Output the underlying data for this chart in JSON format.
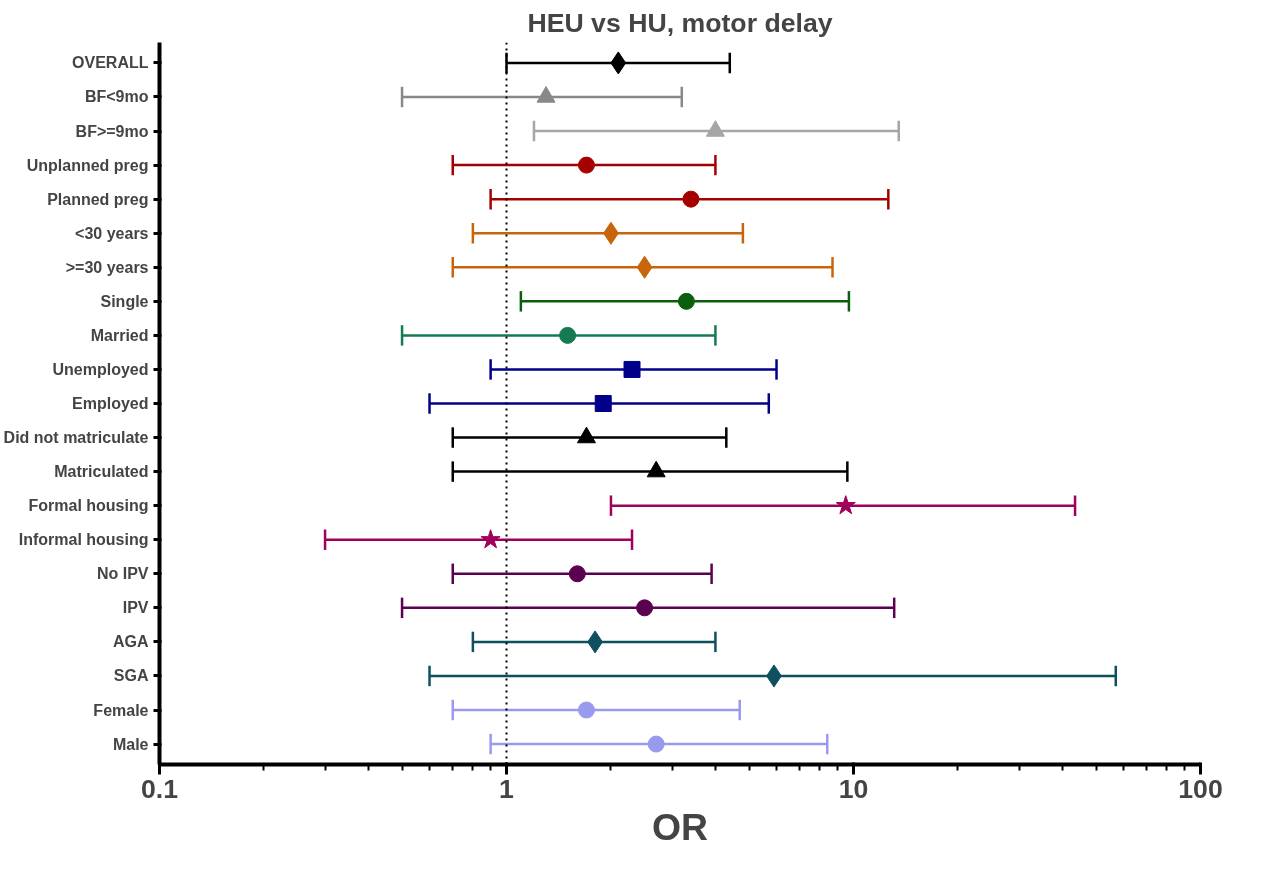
{
  "chart_data": {
    "type": "scatter",
    "orientation": "horizontal",
    "title": "HEU vs HU, motor delay",
    "xlabel": "OR",
    "log": "x",
    "grid": false,
    "categories": [
      "OVERALL",
      "BF<9mo",
      "BF>=9mo",
      "Unplanned preg",
      "Planned preg",
      "<30 years",
      ">=30 years",
      "Single",
      "Married",
      "Unemployed",
      "Employed",
      "Did not matriculate",
      "Matriculated",
      "Formal housing",
      "Informal housing",
      "No IPV",
      "IPV",
      "AGA",
      "SGA",
      "Female",
      "Male"
    ],
    "xlim": [
      0.1,
      100
    ],
    "xticks": [
      0.1,
      {
        "value": 0.2,
        "label": null
      },
      {
        "value": 0.3,
        "label": null
      },
      {
        "value": 0.4,
        "label": null
      },
      {
        "value": 0.5,
        "label": null
      },
      {
        "value": 0.6,
        "label": null
      },
      {
        "value": 0.7,
        "label": null
      },
      {
        "value": 0.8,
        "label": null
      },
      {
        "value": 0.9,
        "label": null
      },
      1,
      {
        "value": 2,
        "label": null
      },
      {
        "value": 3,
        "label": null
      },
      {
        "value": 4,
        "label": null
      },
      {
        "value": 5,
        "label": null
      },
      {
        "value": 6,
        "label": null
      },
      {
        "value": 7,
        "label": null
      },
      {
        "value": 8,
        "label": null
      },
      {
        "value": 9,
        "label": null
      },
      10,
      {
        "value": 20,
        "label": null
      },
      {
        "value": 30,
        "label": null
      },
      {
        "value": 40,
        "label": null
      },
      {
        "value": 50,
        "label": null
      },
      {
        "value": 60,
        "label": null
      },
      {
        "value": 70,
        "label": null
      },
      {
        "value": 80,
        "label": null
      },
      {
        "value": 90,
        "label": null
      },
      100
    ],
    "ref_lines": [
      {
        "axis": "x",
        "value": 1,
        "label": null,
        "color": "#000000",
        "line_style": "dotted"
      }
    ],
    "series": [
      {
        "color": "#000000",
        "marker": "diamond",
        "values": [
          2.1,
          null,
          null,
          null,
          null,
          null,
          null,
          null,
          null,
          null,
          null,
          null,
          null,
          null,
          null,
          null,
          null,
          null,
          null,
          null,
          null
        ],
        "errors": [
          [
            1.0,
            4.4
          ],
          null,
          null,
          null,
          null,
          null,
          null,
          null,
          null,
          null,
          null,
          null,
          null,
          null,
          null,
          null,
          null,
          null,
          null,
          null,
          null
        ]
      },
      {
        "color": "#888888",
        "marker": "triangle",
        "values": [
          null,
          1.3,
          null,
          null,
          null,
          null,
          null,
          null,
          null,
          null,
          null,
          null,
          null,
          null,
          null,
          null,
          null,
          null,
          null,
          null,
          null
        ],
        "errors": [
          null,
          [
            0.5,
            3.2
          ],
          null,
          null,
          null,
          null,
          null,
          null,
          null,
          null,
          null,
          null,
          null,
          null,
          null,
          null,
          null,
          null,
          null,
          null,
          null
        ]
      },
      {
        "color": "#a6a6a6",
        "marker": "triangle",
        "values": [
          null,
          null,
          4.0,
          null,
          null,
          null,
          null,
          null,
          null,
          null,
          null,
          null,
          null,
          null,
          null,
          null,
          null,
          null,
          null,
          null,
          null
        ],
        "errors": [
          null,
          null,
          [
            1.2,
            13.5
          ],
          null,
          null,
          null,
          null,
          null,
          null,
          null,
          null,
          null,
          null,
          null,
          null,
          null,
          null,
          null,
          null,
          null,
          null
        ]
      },
      {
        "color": "#a50000",
        "marker": "circle",
        "values": [
          null,
          null,
          null,
          1.7,
          null,
          null,
          null,
          null,
          null,
          null,
          null,
          null,
          null,
          null,
          null,
          null,
          null,
          null,
          null,
          null,
          null
        ],
        "errors": [
          null,
          null,
          null,
          [
            0.7,
            4.0
          ],
          null,
          null,
          null,
          null,
          null,
          null,
          null,
          null,
          null,
          null,
          null,
          null,
          null,
          null,
          null,
          null,
          null
        ]
      },
      {
        "color": "#a50000",
        "marker": "circle",
        "values": [
          null,
          null,
          null,
          null,
          3.4,
          null,
          null,
          null,
          null,
          null,
          null,
          null,
          null,
          null,
          null,
          null,
          null,
          null,
          null,
          null,
          null
        ],
        "errors": [
          null,
          null,
          null,
          null,
          [
            0.9,
            12.6
          ],
          null,
          null,
          null,
          null,
          null,
          null,
          null,
          null,
          null,
          null,
          null,
          null,
          null,
          null,
          null,
          null
        ]
      },
      {
        "color": "#c8640a",
        "marker": "diamond",
        "values": [
          null,
          null,
          null,
          null,
          null,
          2.0,
          null,
          null,
          null,
          null,
          null,
          null,
          null,
          null,
          null,
          null,
          null,
          null,
          null,
          null,
          null
        ],
        "errors": [
          null,
          null,
          null,
          null,
          null,
          [
            0.8,
            4.8
          ],
          null,
          null,
          null,
          null,
          null,
          null,
          null,
          null,
          null,
          null,
          null,
          null,
          null,
          null,
          null
        ]
      },
      {
        "color": "#c8640a",
        "marker": "diamond",
        "values": [
          null,
          null,
          null,
          null,
          null,
          null,
          2.5,
          null,
          null,
          null,
          null,
          null,
          null,
          null,
          null,
          null,
          null,
          null,
          null,
          null,
          null
        ],
        "errors": [
          null,
          null,
          null,
          null,
          null,
          null,
          [
            0.7,
            8.7
          ],
          null,
          null,
          null,
          null,
          null,
          null,
          null,
          null,
          null,
          null,
          null,
          null,
          null,
          null
        ]
      },
      {
        "color": "#0b5e0b",
        "marker": "circle",
        "values": [
          null,
          null,
          null,
          null,
          null,
          null,
          null,
          3.3,
          null,
          null,
          null,
          null,
          null,
          null,
          null,
          null,
          null,
          null,
          null,
          null,
          null
        ],
        "errors": [
          null,
          null,
          null,
          null,
          null,
          null,
          null,
          [
            1.1,
            9.7
          ],
          null,
          null,
          null,
          null,
          null,
          null,
          null,
          null,
          null,
          null,
          null,
          null,
          null
        ]
      },
      {
        "color": "#167a50",
        "marker": "circle",
        "values": [
          null,
          null,
          null,
          null,
          null,
          null,
          null,
          null,
          1.5,
          null,
          null,
          null,
          null,
          null,
          null,
          null,
          null,
          null,
          null,
          null,
          null
        ],
        "errors": [
          null,
          null,
          null,
          null,
          null,
          null,
          null,
          null,
          [
            0.5,
            4.0
          ],
          null,
          null,
          null,
          null,
          null,
          null,
          null,
          null,
          null,
          null,
          null,
          null
        ]
      },
      {
        "color": "#00008b",
        "marker": "square",
        "values": [
          null,
          null,
          null,
          null,
          null,
          null,
          null,
          null,
          null,
          2.3,
          null,
          null,
          null,
          null,
          null,
          null,
          null,
          null,
          null,
          null,
          null
        ],
        "errors": [
          null,
          null,
          null,
          null,
          null,
          null,
          null,
          null,
          null,
          [
            0.9,
            6.0
          ],
          null,
          null,
          null,
          null,
          null,
          null,
          null,
          null,
          null,
          null,
          null
        ]
      },
      {
        "color": "#00008b",
        "marker": "square",
        "values": [
          null,
          null,
          null,
          null,
          null,
          null,
          null,
          null,
          null,
          null,
          1.9,
          null,
          null,
          null,
          null,
          null,
          null,
          null,
          null,
          null,
          null
        ],
        "errors": [
          null,
          null,
          null,
          null,
          null,
          null,
          null,
          null,
          null,
          null,
          [
            0.6,
            5.7
          ],
          null,
          null,
          null,
          null,
          null,
          null,
          null,
          null,
          null,
          null
        ]
      },
      {
        "color": "#000000",
        "marker": "triangle",
        "values": [
          null,
          null,
          null,
          null,
          null,
          null,
          null,
          null,
          null,
          null,
          null,
          1.7,
          null,
          null,
          null,
          null,
          null,
          null,
          null,
          null,
          null
        ],
        "errors": [
          null,
          null,
          null,
          null,
          null,
          null,
          null,
          null,
          null,
          null,
          null,
          [
            0.7,
            4.3
          ],
          null,
          null,
          null,
          null,
          null,
          null,
          null,
          null,
          null
        ]
      },
      {
        "color": "#000000",
        "marker": "triangle",
        "values": [
          null,
          null,
          null,
          null,
          null,
          null,
          null,
          null,
          null,
          null,
          null,
          null,
          2.7,
          null,
          null,
          null,
          null,
          null,
          null,
          null,
          null
        ],
        "errors": [
          null,
          null,
          null,
          null,
          null,
          null,
          null,
          null,
          null,
          null,
          null,
          null,
          [
            0.7,
            9.6
          ],
          null,
          null,
          null,
          null,
          null,
          null,
          null,
          null
        ]
      },
      {
        "color": "#a0005a",
        "marker": "star",
        "values": [
          null,
          null,
          null,
          null,
          null,
          null,
          null,
          null,
          null,
          null,
          null,
          null,
          null,
          9.5,
          null,
          null,
          null,
          null,
          null,
          null,
          null
        ],
        "errors": [
          null,
          null,
          null,
          null,
          null,
          null,
          null,
          null,
          null,
          null,
          null,
          null,
          null,
          [
            2.0,
            43.5
          ],
          null,
          null,
          null,
          null,
          null,
          null,
          null
        ]
      },
      {
        "color": "#a0005a",
        "marker": "star",
        "values": [
          null,
          null,
          null,
          null,
          null,
          null,
          null,
          null,
          null,
          null,
          null,
          null,
          null,
          null,
          0.9,
          null,
          null,
          null,
          null,
          null,
          null
        ],
        "errors": [
          null,
          null,
          null,
          null,
          null,
          null,
          null,
          null,
          null,
          null,
          null,
          null,
          null,
          null,
          [
            0.3,
            2.3
          ],
          null,
          null,
          null,
          null,
          null,
          null
        ]
      },
      {
        "color": "#5c0050",
        "marker": "circle",
        "values": [
          null,
          null,
          null,
          null,
          null,
          null,
          null,
          null,
          null,
          null,
          null,
          null,
          null,
          null,
          null,
          1.6,
          null,
          null,
          null,
          null,
          null
        ],
        "errors": [
          null,
          null,
          null,
          null,
          null,
          null,
          null,
          null,
          null,
          null,
          null,
          null,
          null,
          null,
          null,
          [
            0.7,
            3.9
          ],
          null,
          null,
          null,
          null,
          null
        ]
      },
      {
        "color": "#5c0050",
        "marker": "circle",
        "values": [
          null,
          null,
          null,
          null,
          null,
          null,
          null,
          null,
          null,
          null,
          null,
          null,
          null,
          null,
          null,
          null,
          2.5,
          null,
          null,
          null,
          null
        ],
        "errors": [
          null,
          null,
          null,
          null,
          null,
          null,
          null,
          null,
          null,
          null,
          null,
          null,
          null,
          null,
          null,
          null,
          [
            0.5,
            13.1
          ],
          null,
          null,
          null,
          null
        ]
      },
      {
        "color": "#0f5060",
        "marker": "diamond",
        "values": [
          null,
          null,
          null,
          null,
          null,
          null,
          null,
          null,
          null,
          null,
          null,
          null,
          null,
          null,
          null,
          null,
          null,
          1.8,
          null,
          null,
          null
        ],
        "errors": [
          null,
          null,
          null,
          null,
          null,
          null,
          null,
          null,
          null,
          null,
          null,
          null,
          null,
          null,
          null,
          null,
          null,
          [
            0.8,
            4.0
          ],
          null,
          null,
          null
        ]
      },
      {
        "color": "#0f5060",
        "marker": "diamond",
        "values": [
          null,
          null,
          null,
          null,
          null,
          null,
          null,
          null,
          null,
          null,
          null,
          null,
          null,
          null,
          null,
          null,
          null,
          null,
          5.9,
          null,
          null
        ],
        "errors": [
          null,
          null,
          null,
          null,
          null,
          null,
          null,
          null,
          null,
          null,
          null,
          null,
          null,
          null,
          null,
          null,
          null,
          null,
          [
            0.6,
            57
          ],
          null,
          null
        ]
      },
      {
        "color": "#9999ee",
        "marker": "circle",
        "values": [
          null,
          null,
          null,
          null,
          null,
          null,
          null,
          null,
          null,
          null,
          null,
          null,
          null,
          null,
          null,
          null,
          null,
          null,
          null,
          1.7,
          null
        ],
        "errors": [
          null,
          null,
          null,
          null,
          null,
          null,
          null,
          null,
          null,
          null,
          null,
          null,
          null,
          null,
          null,
          null,
          null,
          null,
          null,
          [
            0.7,
            4.7
          ],
          null
        ]
      },
      {
        "color": "#9999ee",
        "marker": "circle",
        "values": [
          null,
          null,
          null,
          null,
          null,
          null,
          null,
          null,
          null,
          null,
          null,
          null,
          null,
          null,
          null,
          null,
          null,
          null,
          null,
          null,
          2.7
        ],
        "errors": [
          null,
          null,
          null,
          null,
          null,
          null,
          null,
          null,
          null,
          null,
          null,
          null,
          null,
          null,
          null,
          null,
          null,
          null,
          null,
          null,
          [
            0.9,
            8.4
          ]
        ]
      }
    ]
  }
}
